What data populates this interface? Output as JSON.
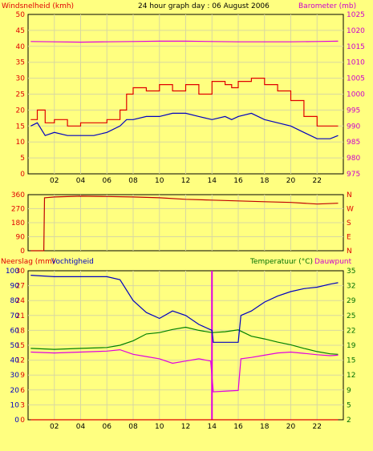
{
  "title": "24 hour graph day : 06 August 2006",
  "colors": {
    "background": "#ffff80",
    "plot_bg": "#ffff80",
    "grid": "#d8d8a0",
    "left_axis_text": "#e00000",
    "right_axis_text": "#cc00cc",
    "green_axis_text": "#007000",
    "wind": "#e00000",
    "gust_avg": "#0000c0",
    "barometer": "#e000e0",
    "direction": "#c00000",
    "humidity": "#0000c0",
    "temperature": "#008000",
    "dewpoint": "#e000e0",
    "rain": "#e00000"
  },
  "x_ticks": [
    "02",
    "04",
    "06",
    "08",
    "10",
    "12",
    "14",
    "16",
    "18",
    "20",
    "22"
  ],
  "chart_data": [
    {
      "type": "line",
      "left_label": "Windsnelheid (kmh)",
      "right_label": "Barometer (mb)",
      "x_range": [
        0,
        24
      ],
      "ylim_left": [
        0,
        50
      ],
      "ylim_right": [
        975,
        1025
      ],
      "left_ticks": [
        "0",
        "5",
        "10",
        "15",
        "20",
        "25",
        "30",
        "35",
        "40",
        "45",
        "50"
      ],
      "right_ticks": [
        "975",
        "980",
        "985",
        "990",
        "995",
        "1000",
        "1005",
        "1010",
        "1015",
        "1020",
        "1025"
      ],
      "grid": true,
      "series": [
        {
          "name": "",
          "axis": "left",
          "color_key": "wind",
          "x": [
            0.2,
            0.7,
            1.3,
            2,
            3,
            4,
            5,
            6,
            7,
            7.5,
            8,
            9,
            10,
            11,
            12,
            13,
            14,
            15,
            15.5,
            16,
            17,
            18,
            19,
            20,
            21,
            22,
            23,
            23.6
          ],
          "y": [
            17,
            20,
            16,
            17,
            15,
            16,
            16,
            17,
            20,
            25,
            27,
            26,
            28,
            26,
            28,
            25,
            29,
            28,
            27,
            29,
            30,
            28,
            26,
            23,
            18,
            15,
            15,
            15
          ]
        },
        {
          "name": "",
          "axis": "left",
          "color_key": "gust_avg",
          "x": [
            0.2,
            0.7,
            1.3,
            2,
            3,
            4,
            5,
            6,
            7,
            7.5,
            8,
            9,
            10,
            11,
            12,
            13,
            14,
            15,
            15.5,
            16,
            17,
            18,
            19,
            20,
            21,
            22,
            23,
            23.6
          ],
          "y": [
            15,
            16,
            12,
            13,
            12,
            12,
            12,
            13,
            15,
            17,
            17,
            18,
            18,
            19,
            19,
            18,
            17,
            18,
            17,
            18,
            19,
            17,
            16,
            15,
            13,
            11,
            11,
            12
          ]
        },
        {
          "name": "",
          "axis": "right",
          "color_key": "barometer",
          "x": [
            0.2,
            2,
            4,
            6,
            8,
            10,
            12,
            14,
            16,
            18,
            20,
            22,
            23.6
          ],
          "y": [
            1016.5,
            1016.4,
            1016.3,
            1016.4,
            1016.5,
            1016.6,
            1016.6,
            1016.5,
            1016.4,
            1016.4,
            1016.4,
            1016.5,
            1016.6
          ]
        }
      ]
    },
    {
      "type": "line",
      "left_ticks": [
        "0",
        "90",
        "180",
        "270",
        "360"
      ],
      "right_ticks": [
        "N",
        "E",
        "S",
        "W",
        "N"
      ],
      "ylim_left": [
        0,
        360
      ],
      "x_range": [
        0,
        24
      ],
      "grid": true,
      "series": [
        {
          "name": "",
          "axis": "left",
          "color_key": "direction",
          "x": [
            0.2,
            1.2,
            1.25,
            2,
            4,
            6,
            8,
            10,
            12,
            14,
            16,
            18,
            20,
            22,
            23.6
          ],
          "y": [
            0,
            0,
            340,
            345,
            350,
            348,
            345,
            340,
            330,
            325,
            320,
            315,
            310,
            300,
            305
          ]
        }
      ]
    },
    {
      "type": "line",
      "left_label_1": "Neerslag (mm)",
      "left_label_2": "Vochtigheid",
      "right_label_1": "Temperatuur (°C)",
      "right_label_2": "Dauwpunt",
      "x_range": [
        0,
        24
      ],
      "ylim_rain": [
        0,
        30
      ],
      "ylim_humidity": [
        0,
        100
      ],
      "ylim_temp": [
        2,
        35
      ],
      "rain_ticks": [
        "0",
        "3",
        "6",
        "9",
        "12",
        "15",
        "18",
        "21",
        "24",
        "27",
        "30"
      ],
      "humidity_ticks": [
        "0",
        "10",
        "20",
        "30",
        "40",
        "50",
        "60",
        "70",
        "80",
        "90",
        "100"
      ],
      "temp_ticks": [
        "2",
        "5",
        "9",
        "12",
        "15",
        "19",
        "22",
        "25",
        "29",
        "32",
        "35"
      ],
      "grid": true,
      "series": [
        {
          "name": "",
          "axis": "humidity",
          "color_key": "humidity",
          "x": [
            0.2,
            2,
            4,
            6,
            7,
            8,
            9,
            10,
            11,
            12,
            13,
            14,
            14.1,
            16,
            16.2,
            17,
            18,
            19,
            20,
            21,
            22,
            23,
            23.6
          ],
          "y": [
            97,
            96,
            96,
            96,
            94,
            80,
            72,
            68,
            73,
            70,
            64,
            60,
            52,
            52,
            70,
            73,
            79,
            83,
            86,
            88,
            89,
            91,
            92
          ]
        },
        {
          "name": "",
          "axis": "temp",
          "color_key": "temperature",
          "x": [
            0.2,
            2,
            4,
            6,
            7,
            8,
            9,
            10,
            11,
            12,
            13,
            14,
            15,
            16,
            17,
            18,
            19,
            20,
            21,
            22,
            23,
            23.6
          ],
          "y": [
            17.8,
            17.6,
            17.8,
            18.0,
            18.5,
            19.5,
            21.0,
            21.3,
            22.0,
            22.5,
            21.8,
            21.3,
            21.5,
            21.9,
            20.5,
            19.9,
            19.2,
            18.6,
            17.8,
            17.1,
            16.6,
            16.5
          ]
        },
        {
          "name": "",
          "axis": "temp",
          "color_key": "dewpoint",
          "x": [
            0.2,
            2,
            4,
            6,
            7,
            8,
            9,
            10,
            11,
            12,
            13,
            13.9,
            14.1,
            16,
            16.2,
            17,
            18,
            19,
            20,
            21,
            22,
            23,
            23.6
          ],
          "y": [
            17.0,
            16.8,
            17.0,
            17.2,
            17.5,
            16.5,
            16.0,
            15.5,
            14.5,
            15.0,
            15.5,
            15.0,
            8.2,
            8.5,
            15.5,
            15.8,
            16.3,
            16.8,
            17.0,
            16.7,
            16.4,
            16.2,
            16.3
          ]
        },
        {
          "name": "",
          "axis": "rain",
          "color_key": "rain",
          "x": [
            0.2,
            23.6
          ],
          "y": [
            0,
            0
          ]
        }
      ],
      "markers": [
        {
          "x": 14,
          "color_key": "barometer",
          "note": "magenta vertical marker"
        }
      ]
    }
  ]
}
